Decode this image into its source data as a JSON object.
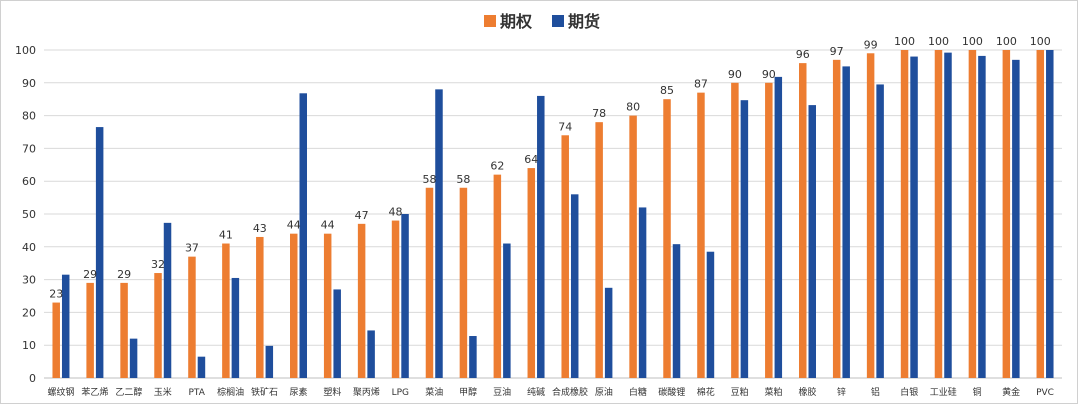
{
  "chart_data": {
    "type": "bar",
    "title": "",
    "xlabel": "",
    "ylabel": "",
    "ylim": [
      0,
      100
    ],
    "yticks": [
      0,
      10,
      20,
      30,
      40,
      50,
      60,
      70,
      80,
      90,
      100
    ],
    "grid": true,
    "legend_position": "top-center",
    "categories": [
      "螺纹钢",
      "苯乙烯",
      "乙二醇",
      "玉米",
      "PTA",
      "棕榈油",
      "铁矿石",
      "尿素",
      "塑料",
      "聚丙烯",
      "LPG",
      "菜油",
      "甲醇",
      "豆油",
      "纯碱",
      "合成橡胶",
      "原油",
      "白糖",
      "碳酸锂",
      "棉花",
      "豆粕",
      "菜粕",
      "橡胶",
      "锌",
      "铝",
      "白银",
      "工业硅",
      "铜",
      "黄金",
      "PVC"
    ],
    "series": [
      {
        "name": "期权",
        "color": "#ed7d31",
        "values": [
          23,
          29,
          29,
          32,
          37,
          41,
          43,
          44,
          44,
          47,
          48,
          58,
          58,
          62,
          64,
          74,
          78,
          80,
          85,
          87,
          90,
          90,
          96,
          97,
          99,
          100,
          100,
          100,
          100,
          100
        ],
        "data_labels": [
          "23",
          "29",
          "29",
          "32",
          "37",
          "41",
          "43",
          "44",
          "44",
          "47",
          "48",
          "58",
          "58",
          "62",
          "64",
          "74",
          "78",
          "80",
          "85",
          "87",
          "90",
          "90",
          "96",
          "97",
          "99",
          "100",
          "100",
          "100",
          "100",
          "100"
        ]
      },
      {
        "name": "期货",
        "color": "#1f4e9c",
        "values": [
          31.5,
          76.5,
          12,
          47.3,
          6.5,
          30.5,
          9.8,
          86.8,
          27,
          14.5,
          50,
          88,
          12.8,
          41,
          86,
          56,
          27.5,
          52,
          40.8,
          38.5,
          84.7,
          91.8,
          83.2,
          95,
          89.5,
          98,
          99.2,
          98.2,
          97,
          100
        ]
      }
    ]
  }
}
